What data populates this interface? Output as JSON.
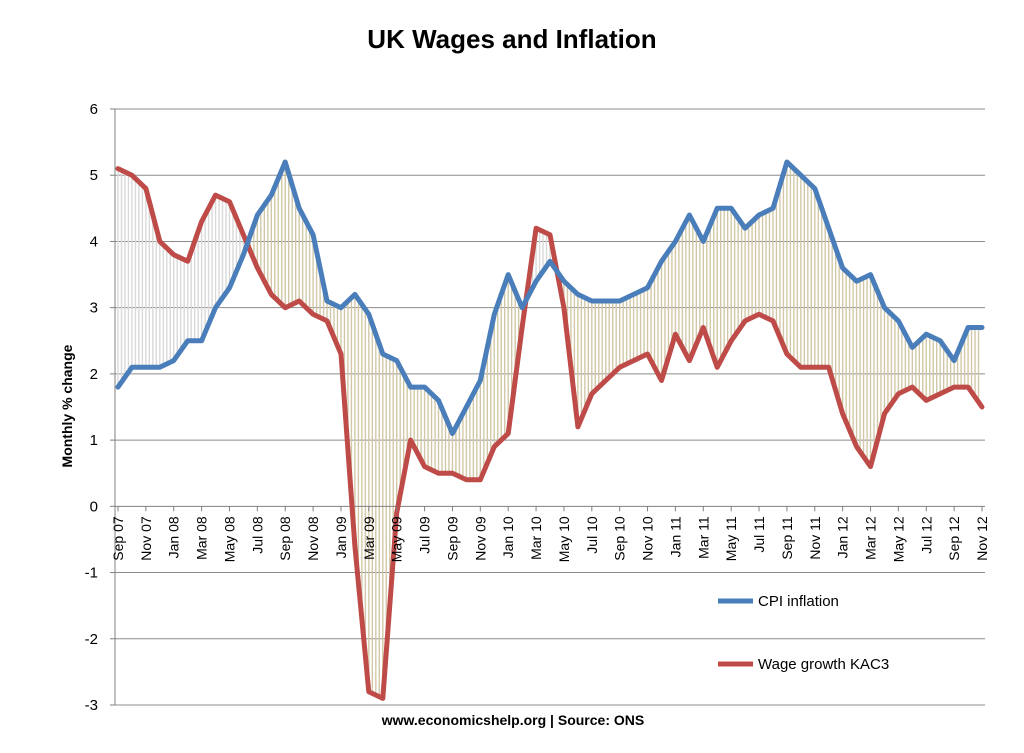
{
  "chart_data": {
    "type": "line",
    "title": "UK Wages and Inflation",
    "ylabel": "Monthly % change",
    "xlabel": "",
    "source_note": "www.economicshelp.org | Source: ONS",
    "ylim": [
      -3,
      6
    ],
    "yticks": [
      -3,
      -2,
      -1,
      0,
      1,
      2,
      3,
      4,
      5,
      6
    ],
    "grid": true,
    "legend_position": "right",
    "categories": [
      "Sep 07",
      "Oct 07",
      "Nov 07",
      "Dec 07",
      "Jan 08",
      "Feb 08",
      "Mar 08",
      "Apr 08",
      "May 08",
      "Jun 08",
      "Jul 08",
      "Aug 08",
      "Sep 08",
      "Oct 08",
      "Nov 08",
      "Dec 08",
      "Jan 09",
      "Feb 09",
      "Mar 09",
      "Apr 09",
      "May 09",
      "Jun 09",
      "Jul 09",
      "Aug 09",
      "Sep 09",
      "Oct 09",
      "Nov 09",
      "Dec 09",
      "Jan 10",
      "Feb 10",
      "Mar 10",
      "Apr 10",
      "May 10",
      "Jun 10",
      "Jul 10",
      "Aug 10",
      "Sep 10",
      "Oct 10",
      "Nov 10",
      "Dec 10",
      "Jan 11",
      "Feb 11",
      "Mar 11",
      "Apr 11",
      "May 11",
      "Jun 11",
      "Jul 11",
      "Aug 11",
      "Sep 11",
      "Oct 11",
      "Nov 11",
      "Dec 11",
      "Jan 12",
      "Feb 12",
      "Mar 12",
      "Apr 12",
      "May 12",
      "Jun 12",
      "Jul 12",
      "Aug 12",
      "Sep 12",
      "Oct 12",
      "Nov 12"
    ],
    "tick_labels": [
      "Sep 07",
      "Nov 07",
      "Jan 08",
      "Mar 08",
      "May 08",
      "Jul 08",
      "Sep 08",
      "Nov 08",
      "Jan 09",
      "Mar 09",
      "May 09",
      "Jul 09",
      "Sep 09",
      "Nov 09",
      "Jan 10",
      "Mar 10",
      "May 10",
      "Jul 10",
      "Sep 10",
      "Nov 10",
      "Jan 11",
      "Mar 11",
      "May 11",
      "Jul 11",
      "Sep 11",
      "Nov 11",
      "Jan 12",
      "Mar 12",
      "May 12",
      "Jul 12",
      "Sep 12",
      "Nov 12"
    ],
    "series": [
      {
        "name": "CPI inflation",
        "color": "#4a7ebb",
        "values": [
          1.8,
          2.1,
          2.1,
          2.1,
          2.2,
          2.5,
          2.5,
          3.0,
          3.3,
          3.8,
          4.4,
          4.7,
          5.2,
          4.5,
          4.1,
          3.1,
          3.0,
          3.2,
          2.9,
          2.3,
          2.2,
          1.8,
          1.8,
          1.6,
          1.1,
          1.5,
          1.9,
          2.9,
          3.5,
          3.0,
          3.4,
          3.7,
          3.4,
          3.2,
          3.1,
          3.1,
          3.1,
          3.2,
          3.3,
          3.7,
          4.0,
          4.4,
          4.0,
          4.5,
          4.5,
          4.2,
          4.4,
          4.5,
          5.2,
          5.0,
          4.8,
          4.2,
          3.6,
          3.4,
          3.5,
          3.0,
          2.8,
          2.4,
          2.6,
          2.5,
          2.2,
          2.7,
          2.7
        ]
      },
      {
        "name": "Wage growth KAC3",
        "color": "#be4b48",
        "values": [
          5.1,
          5.0,
          4.8,
          4.0,
          3.8,
          3.7,
          4.3,
          4.7,
          4.6,
          4.1,
          3.6,
          3.2,
          3.0,
          3.1,
          2.9,
          2.8,
          2.3,
          -0.6,
          -2.8,
          -2.9,
          -0.1,
          1.0,
          0.6,
          0.5,
          0.5,
          0.4,
          0.4,
          0.9,
          1.1,
          2.7,
          4.2,
          4.1,
          3.0,
          1.2,
          1.7,
          1.9,
          2.1,
          2.2,
          2.3,
          1.9,
          2.6,
          2.2,
          2.7,
          2.1,
          2.5,
          2.8,
          2.9,
          2.8,
          2.3,
          2.1,
          2.1,
          2.1,
          1.4,
          0.9,
          0.6,
          1.4,
          1.7,
          1.8,
          1.6,
          1.7,
          1.8,
          1.8,
          1.5
        ]
      }
    ]
  }
}
